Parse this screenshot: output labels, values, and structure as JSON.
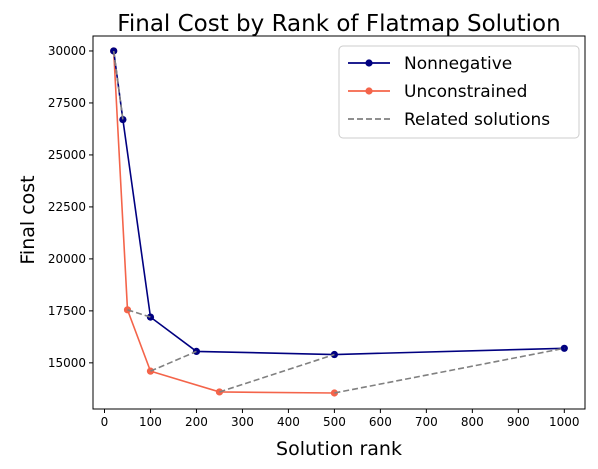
{
  "chart_data": {
    "type": "line",
    "title": "Final Cost by Rank of Flatmap Solution",
    "xlabel": "Solution rank",
    "ylabel": "Final cost",
    "xlim": [
      -25,
      1045
    ],
    "ylim": [
      12780,
      30720
    ],
    "xticks": [
      0,
      100,
      200,
      300,
      400,
      500,
      600,
      700,
      800,
      900,
      1000
    ],
    "yticks": [
      15000,
      17500,
      20000,
      22500,
      25000,
      27500,
      30000
    ],
    "legend_position": "top-right",
    "grid": false,
    "series": [
      {
        "name": "Nonnegative",
        "color": "#000080",
        "style": "solid-with-markers",
        "x": [
          20,
          40,
          100,
          200,
          500,
          1000
        ],
        "y": [
          30000,
          26700,
          17200,
          15550,
          15400,
          15700
        ]
      },
      {
        "name": "Unconstrained",
        "color": "#f4644a",
        "style": "solid-with-markers",
        "x": [
          20,
          50,
          100,
          250,
          500
        ],
        "y": [
          30000,
          17550,
          14600,
          13600,
          13550
        ]
      },
      {
        "name": "Related solutions",
        "color": "#808080",
        "style": "dashed",
        "segments": [
          {
            "x": [
              20,
              40
            ],
            "y": [
              30000,
              26700
            ]
          },
          {
            "x": [
              50,
              100
            ],
            "y": [
              17550,
              17200
            ]
          },
          {
            "x": [
              100,
              200
            ],
            "y": [
              14600,
              15550
            ]
          },
          {
            "x": [
              250,
              500
            ],
            "y": [
              13600,
              15400
            ]
          },
          {
            "x": [
              500,
              1000
            ],
            "y": [
              13550,
              15700
            ]
          }
        ]
      }
    ]
  }
}
